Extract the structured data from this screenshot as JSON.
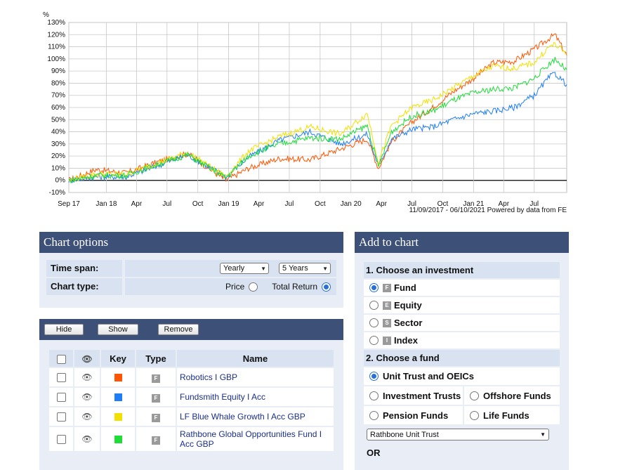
{
  "chart_data": {
    "type": "line",
    "ylabel": "%",
    "ylim": [
      -10,
      130
    ],
    "y_ticks": [
      "130%",
      "120%",
      "110%",
      "100%",
      "90%",
      "80%",
      "70%",
      "60%",
      "50%",
      "40%",
      "30%",
      "20%",
      "10%",
      "0%",
      "-10%"
    ],
    "x_ticks": [
      "Sep 17",
      "Jan 18",
      "Apr",
      "Jul",
      "Oct",
      "Jan 19",
      "Apr",
      "Jul",
      "Oct",
      "Jan 20",
      "Apr",
      "Jul",
      "Oct",
      "Jan 21",
      "Apr",
      "Jul"
    ],
    "date_range": "11/09/2017 - 06/10/2021",
    "credit": "Powered by data from FE",
    "x_dates": [
      "2017-09-11",
      "2017-12-01",
      "2018-03-01",
      "2018-06-01",
      "2018-09-01",
      "2018-12-24",
      "2019-03-01",
      "2019-06-01",
      "2019-09-01",
      "2019-12-01",
      "2020-02-19",
      "2020-03-23",
      "2020-05-01",
      "2020-07-01",
      "2020-09-01",
      "2020-11-01",
      "2021-01-01",
      "2021-03-01",
      "2021-05-01",
      "2021-07-01",
      "2021-08-15",
      "2021-09-01",
      "2021-10-06"
    ],
    "series": [
      {
        "name": "Robotics I GBP",
        "color": "#ff5500",
        "values": [
          0,
          9,
          6,
          15,
          22,
          0,
          10,
          18,
          17,
          26,
          34,
          10,
          32,
          48,
          60,
          73,
          84,
          97,
          98,
          108,
          117,
          120,
          103
        ]
      },
      {
        "name": "Fundsmith Equity I Acc",
        "color": "#1f7ef5",
        "values": [
          0,
          3,
          3,
          12,
          21,
          3,
          19,
          33,
          40,
          30,
          38,
          12,
          34,
          42,
          44,
          50,
          55,
          57,
          60,
          70,
          85,
          88,
          79
        ]
      },
      {
        "name": "LF Blue Whale Growth I Acc GBP",
        "color": "#f2e000",
        "values": [
          0,
          5,
          5,
          14,
          23,
          3,
          24,
          36,
          44,
          38,
          55,
          15,
          45,
          60,
          66,
          76,
          86,
          94,
          92,
          97,
          110,
          112,
          104
        ]
      },
      {
        "name": "Rathbone Global Opportunities Fund I Acc GBP",
        "color": "#1fdc38",
        "values": [
          0,
          4,
          4,
          13,
          21,
          2,
          20,
          30,
          35,
          34,
          45,
          11,
          40,
          53,
          57,
          66,
          72,
          75,
          76,
          84,
          96,
          100,
          91
        ]
      }
    ]
  },
  "chart_options": {
    "title": "Chart options",
    "time_span_label": "Time span:",
    "time_span_interval": "Yearly",
    "time_span_period": "5 Years",
    "chart_type_label": "Chart type:",
    "price_label": "Price",
    "total_return_label": "Total Return",
    "selected_type": "Total Return"
  },
  "fund_list": {
    "buttons": {
      "hide": "Hide",
      "show": "Show",
      "remove": "Remove"
    },
    "headers": {
      "key": "Key",
      "type": "Type",
      "name": "Name"
    },
    "type_badge": "F",
    "eye_icon": "eye-icon",
    "rows": [
      {
        "name": "Robotics I GBP",
        "color": "#ff5500"
      },
      {
        "name": "Fundsmith Equity I Acc",
        "color": "#1f7ef5"
      },
      {
        "name": "LF Blue Whale Growth I Acc GBP",
        "color": "#f2e000"
      },
      {
        "name": "Rathbone Global Opportunities Fund I Acc GBP",
        "color": "#1fdc38"
      }
    ]
  },
  "add_to_chart": {
    "title": "Add to chart",
    "step1": "1. Choose an investment",
    "investment_types": [
      {
        "badge": "F",
        "label": "Fund",
        "selected": true
      },
      {
        "badge": "E",
        "label": "Equity",
        "selected": false
      },
      {
        "badge": "S",
        "label": "Sector",
        "selected": false
      },
      {
        "badge": "I",
        "label": "Index",
        "selected": false
      }
    ],
    "step2": "2. Choose a fund",
    "fund_types": {
      "unit_trust": "Unit Trust and OEICs",
      "investment_trusts": "Investment Trusts",
      "offshore_funds": "Offshore Funds",
      "pension_funds": "Pension Funds",
      "life_funds": "Life Funds"
    },
    "fund_manager_select": "Rathbone Unit Trust",
    "or_label": "OR"
  }
}
